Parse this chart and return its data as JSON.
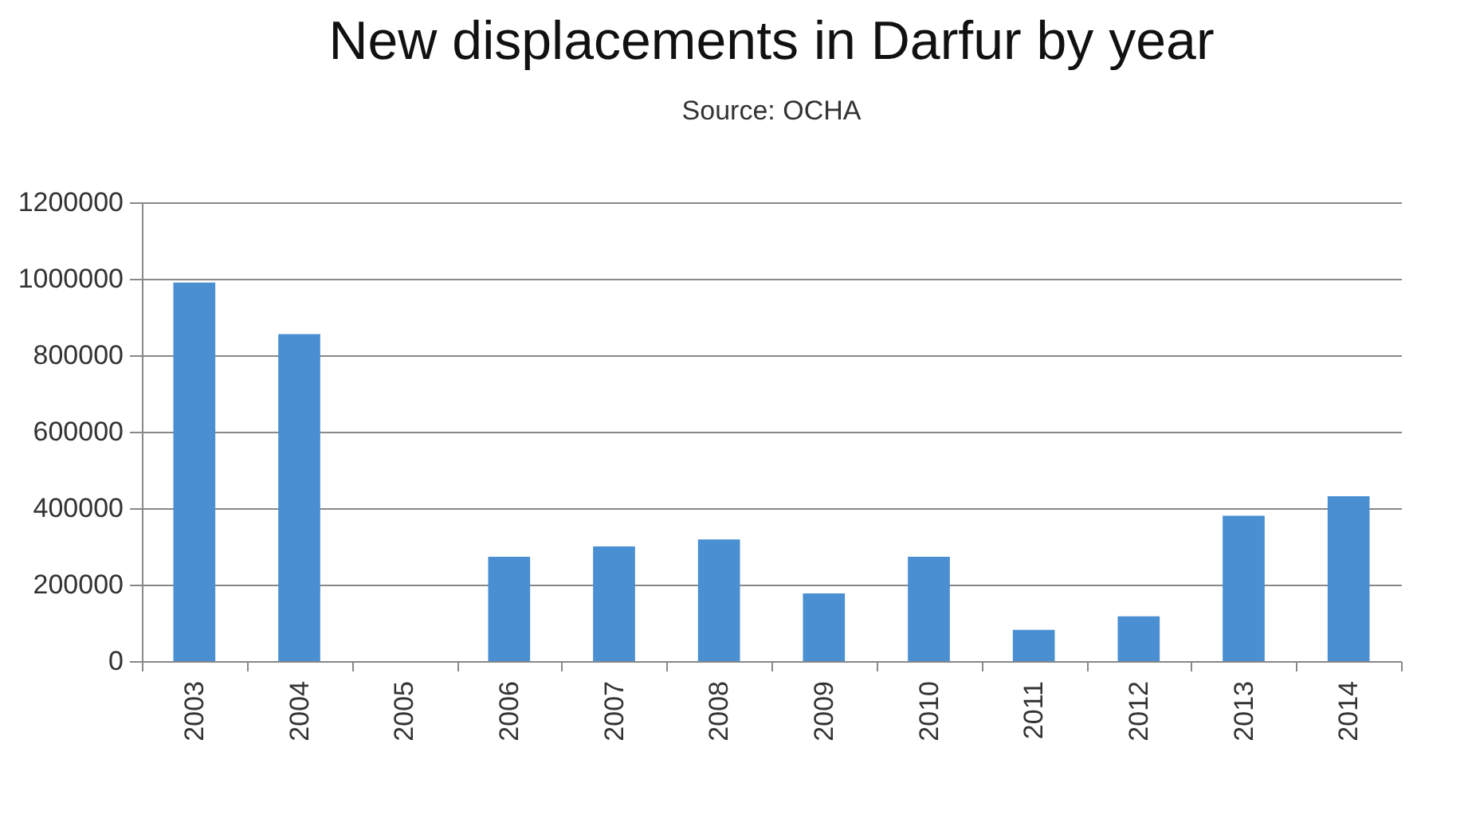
{
  "chart_data": {
    "type": "bar",
    "title": "New displacements in Darfur by year",
    "annotations": [
      "Source: OCHA"
    ],
    "categories": [
      "2003",
      "2004",
      "2005",
      "2006",
      "2007",
      "2008",
      "2009",
      "2010",
      "2011",
      "2012",
      "2013",
      "2014"
    ],
    "values": [
      990000,
      855000,
      0,
      273000,
      300000,
      318000,
      177000,
      273000,
      82000,
      117000,
      380000,
      431000
    ],
    "color": "#4a8fd1",
    "ylim": [
      0,
      1200000
    ],
    "yticks": [
      0,
      200000,
      400000,
      600000,
      800000,
      1000000,
      1200000
    ],
    "grid": "y"
  }
}
